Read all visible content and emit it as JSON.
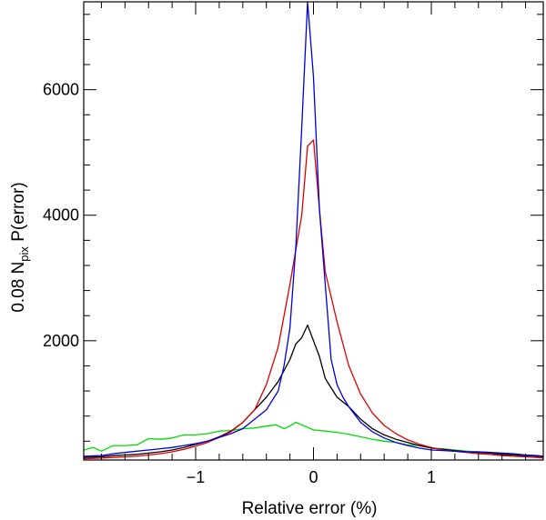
{
  "chart_data": {
    "type": "line",
    "xlabel": "Relative error (%)",
    "ylabel": {
      "prefix": "0.08 N",
      "subscript": "pix",
      "suffix": " P(error)"
    },
    "xlim": [
      -1.95,
      1.95
    ],
    "ylim": [
      100,
      7400
    ],
    "xticks": [
      -1,
      0,
      1
    ],
    "xtick_labels": [
      "−1",
      "0",
      "1"
    ],
    "yticks": [
      2000,
      4000,
      6000
    ],
    "ytick_labels": [
      "2000",
      "4000",
      "6000"
    ],
    "grid": false,
    "series": [
      {
        "color": "#00dd00",
        "x": [
          -1.95,
          -1.87,
          -1.8,
          -1.7,
          -1.6,
          -1.5,
          -1.4,
          -1.3,
          -1.2,
          -1.1,
          -1.0,
          -0.9,
          -0.8,
          -0.7,
          -0.6,
          -0.5,
          -0.4,
          -0.32,
          -0.25,
          -0.2,
          -0.15,
          -0.1,
          -0.05,
          0.0,
          0.1,
          0.2,
          0.3,
          0.4,
          0.5,
          0.6,
          0.7,
          0.8,
          0.9,
          1.0,
          1.1,
          1.2,
          1.3,
          1.4,
          1.5,
          1.6,
          1.7,
          1.8,
          1.9,
          1.95
        ],
        "y": [
          260,
          300,
          240,
          330,
          330,
          340,
          440,
          430,
          450,
          500,
          500,
          520,
          560,
          570,
          600,
          610,
          640,
          660,
          600,
          640,
          700,
          660,
          620,
          580,
          560,
          540,
          510,
          470,
          430,
          400,
          380,
          340,
          330,
          290,
          280,
          260,
          240,
          230,
          220,
          200,
          190,
          180,
          170,
          160
        ]
      },
      {
        "color": "#000000",
        "x": [
          -1.95,
          -1.8,
          -1.7,
          -1.6,
          -1.5,
          -1.4,
          -1.3,
          -1.2,
          -1.1,
          -1.0,
          -0.9,
          -0.8,
          -0.7,
          -0.6,
          -0.5,
          -0.4,
          -0.3,
          -0.2,
          -0.15,
          -0.1,
          -0.05,
          0.0,
          0.05,
          0.1,
          0.15,
          0.2,
          0.3,
          0.4,
          0.5,
          0.6,
          0.7,
          0.8,
          0.9,
          1.0,
          1.1,
          1.2,
          1.3,
          1.4,
          1.5,
          1.6,
          1.7,
          1.8,
          1.9,
          1.95
        ],
        "y": [
          140,
          150,
          170,
          180,
          190,
          210,
          230,
          260,
          300,
          350,
          400,
          470,
          560,
          700,
          900,
          1100,
          1350,
          1700,
          1950,
          2050,
          2250,
          2000,
          1750,
          1400,
          1250,
          1100,
          950,
          750,
          600,
          500,
          430,
          380,
          330,
          290,
          270,
          250,
          230,
          220,
          210,
          190,
          180,
          170,
          160,
          150
        ]
      },
      {
        "color": "#dd0000",
        "x": [
          -1.95,
          -1.8,
          -1.7,
          -1.6,
          -1.5,
          -1.4,
          -1.3,
          -1.2,
          -1.1,
          -1.0,
          -0.9,
          -0.8,
          -0.7,
          -0.6,
          -0.5,
          -0.4,
          -0.3,
          -0.2,
          -0.1,
          -0.05,
          0.0,
          0.05,
          0.1,
          0.2,
          0.3,
          0.4,
          0.5,
          0.6,
          0.7,
          0.8,
          0.9,
          1.0,
          1.1,
          1.2,
          1.3,
          1.4,
          1.5,
          1.6,
          1.7,
          1.8,
          1.9,
          1.95
        ],
        "y": [
          120,
          130,
          140,
          150,
          160,
          180,
          200,
          230,
          270,
          320,
          380,
          460,
          550,
          700,
          900,
          1300,
          1900,
          2900,
          4000,
          5100,
          5200,
          4100,
          3100,
          2300,
          1600,
          1150,
          850,
          650,
          520,
          420,
          350,
          300,
          260,
          240,
          220,
          200,
          190,
          170,
          160,
          150,
          140,
          130
        ]
      },
      {
        "color": "#0000dd",
        "x": [
          -1.95,
          -1.8,
          -1.7,
          -1.6,
          -1.5,
          -1.4,
          -1.3,
          -1.2,
          -1.1,
          -1.0,
          -0.9,
          -0.8,
          -0.7,
          -0.6,
          -0.5,
          -0.4,
          -0.3,
          -0.25,
          -0.2,
          -0.15,
          -0.1,
          -0.05,
          0.0,
          0.05,
          0.1,
          0.15,
          0.2,
          0.25,
          0.3,
          0.4,
          0.5,
          0.6,
          0.7,
          0.8,
          0.9,
          1.0,
          1.1,
          1.2,
          1.3,
          1.4,
          1.5,
          1.6,
          1.7,
          1.8,
          1.9,
          1.95
        ],
        "y": [
          160,
          170,
          200,
          220,
          240,
          260,
          280,
          300,
          330,
          360,
          400,
          460,
          520,
          600,
          750,
          900,
          1200,
          1600,
          2200,
          3500,
          5400,
          7400,
          6200,
          4100,
          2900,
          1700,
          1300,
          1100,
          950,
          700,
          550,
          450,
          380,
          330,
          290,
          260,
          250,
          240,
          230,
          230,
          220,
          210,
          200,
          180,
          170,
          160
        ]
      }
    ]
  }
}
